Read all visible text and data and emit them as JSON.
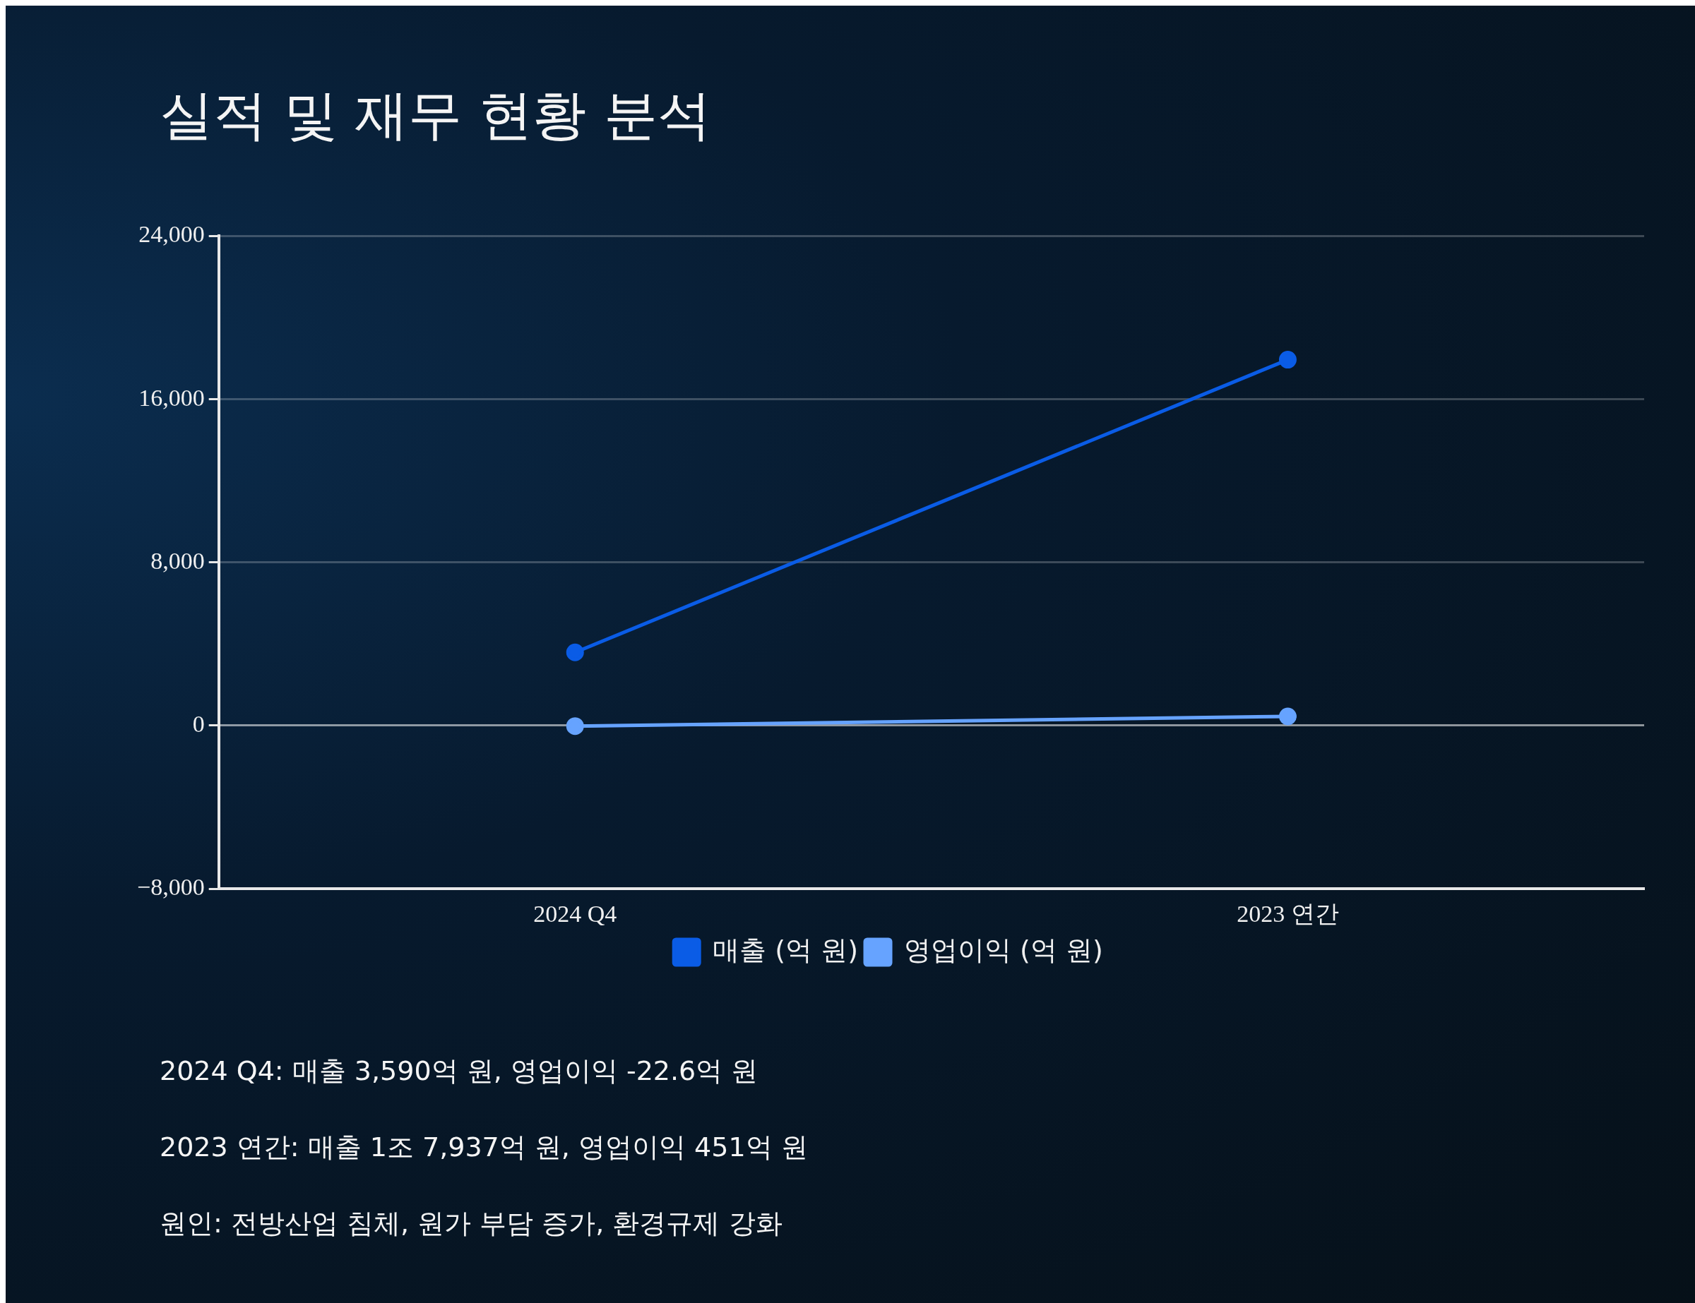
{
  "chart_data": {
    "type": "line",
    "title": "실적 및 재무 현황 분석",
    "categories": [
      "2024 Q4",
      "2023 연간"
    ],
    "series": [
      {
        "name": "매출 (억 원)",
        "color": "#0a5ce6",
        "values": [
          3590,
          17937
        ]
      },
      {
        "name": "영업이익 (억 원)",
        "color": "#66a3ff",
        "values": [
          -22.6,
          451
        ]
      }
    ],
    "ylim": [
      -8000,
      24000
    ],
    "yticks": [
      {
        "value": -8000,
        "label": "−8,000"
      },
      0,
      {
        "value": 8000,
        "label": "8,000"
      },
      {
        "value": 16000,
        "label": "16,000"
      },
      {
        "value": 24000,
        "label": "24,000"
      }
    ],
    "grid": "y",
    "legend": "bottom",
    "marker": "circle",
    "line_style": "solid",
    "annotations": [
      "2024 Q4: 매출 3,590억 원, 영업이익 -22.6억 원",
      "2023 연간: 매출 1조 7,937억 원, 영업이익 451억 원",
      "원인: 전방산업 침체, 원가 부담 증가, 환경규제 강화"
    ]
  }
}
